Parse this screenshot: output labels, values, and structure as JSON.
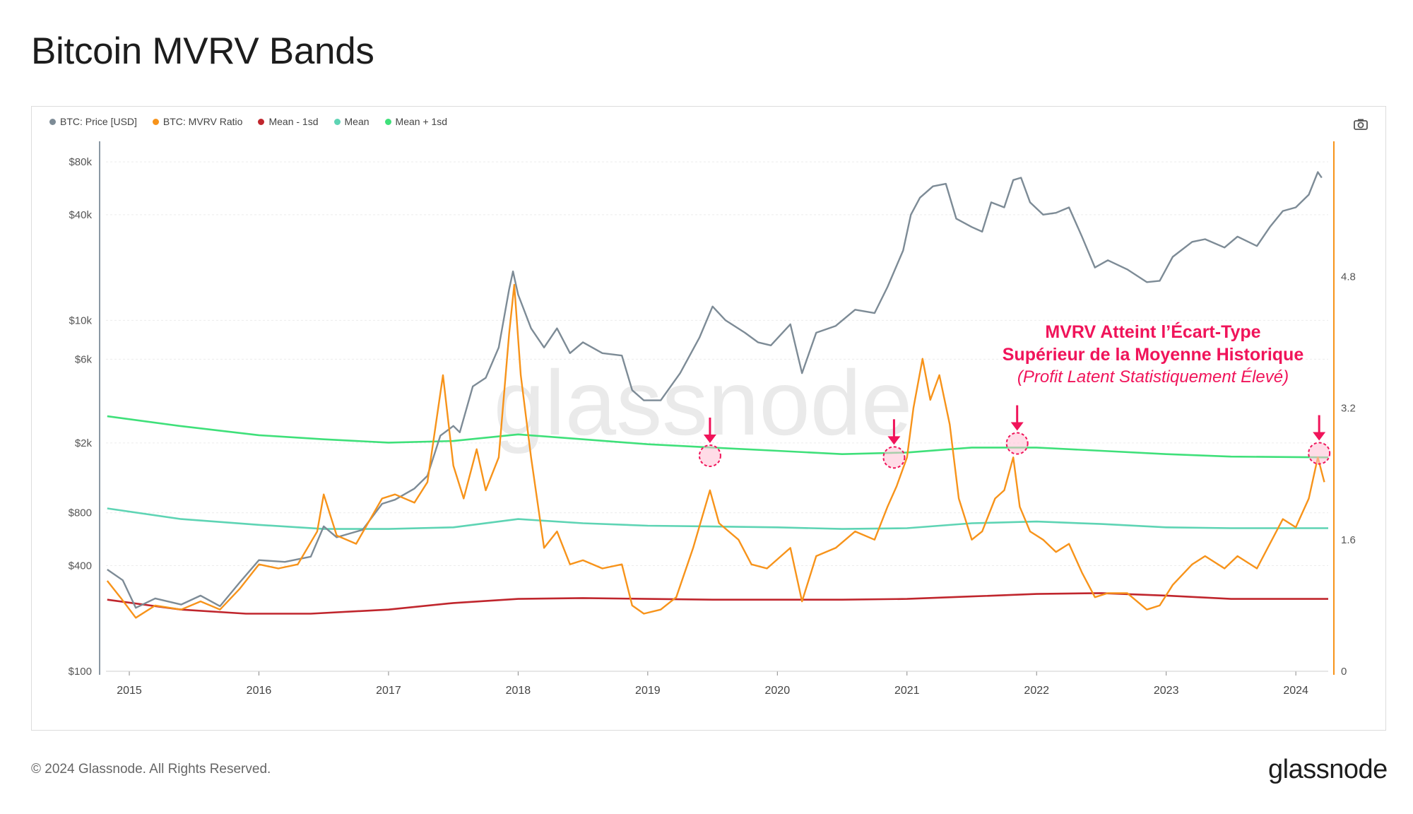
{
  "title": "Bitcoin MVRV Bands",
  "footer": "© 2024 Glassnode. All Rights Reserved.",
  "brand": "glassnode",
  "watermark": "glassnode",
  "colors": {
    "price": "#7d8b96",
    "mvrv": "#f7931a",
    "mean_minus_1sd": "#c0262d",
    "mean": "#5ed4b4",
    "mean_plus_1sd": "#3fe07a",
    "annotation": "#f0145a"
  },
  "chart_data": {
    "type": "line",
    "legend": [
      {
        "name": "BTC: Price [USD]",
        "color": "#7d8b96"
      },
      {
        "name": "BTC: MVRV Ratio",
        "color": "#f7931a"
      },
      {
        "name": "Mean - 1sd",
        "color": "#c0262d"
      },
      {
        "name": "Mean",
        "color": "#5ed4b4"
      },
      {
        "name": "Mean + 1sd",
        "color": "#3fe07a"
      }
    ],
    "x_ticks": [
      "2015",
      "2016",
      "2017",
      "2018",
      "2019",
      "2020",
      "2021",
      "2022",
      "2023",
      "2024"
    ],
    "x_range": [
      2014.82,
      2024.25
    ],
    "y_left": {
      "scale": "log",
      "range": [
        100,
        100000
      ],
      "ticks": [
        {
          "value": 80000,
          "label": "$80k"
        },
        {
          "value": 40000,
          "label": "$40k"
        },
        {
          "value": 10000,
          "label": "$10k"
        },
        {
          "value": 6000,
          "label": "$6k"
        },
        {
          "value": 2000,
          "label": "$2k"
        },
        {
          "value": 800,
          "label": "$800"
        },
        {
          "value": 400,
          "label": "$400"
        },
        {
          "value": 100,
          "label": "$100"
        }
      ]
    },
    "y_right": {
      "scale": "linear",
      "range": [
        0,
        6.4
      ],
      "ticks": [
        {
          "value": 4.8,
          "label": "4.8"
        },
        {
          "value": 3.2,
          "label": "3.2"
        },
        {
          "value": 1.6,
          "label": "1.6"
        },
        {
          "value": 0,
          "label": "0"
        }
      ]
    },
    "series": [
      {
        "name": "BTC: Price [USD]",
        "axis": "left",
        "points": [
          [
            2014.83,
            380
          ],
          [
            2014.95,
            330
          ],
          [
            2015.05,
            230
          ],
          [
            2015.2,
            260
          ],
          [
            2015.4,
            240
          ],
          [
            2015.55,
            270
          ],
          [
            2015.7,
            235
          ],
          [
            2015.85,
            320
          ],
          [
            2016.0,
            430
          ],
          [
            2016.2,
            420
          ],
          [
            2016.4,
            450
          ],
          [
            2016.5,
            670
          ],
          [
            2016.6,
            580
          ],
          [
            2016.8,
            640
          ],
          [
            2016.95,
            900
          ],
          [
            2017.05,
            950
          ],
          [
            2017.2,
            1100
          ],
          [
            2017.3,
            1300
          ],
          [
            2017.4,
            2200
          ],
          [
            2017.5,
            2500
          ],
          [
            2017.55,
            2300
          ],
          [
            2017.65,
            4200
          ],
          [
            2017.75,
            4700
          ],
          [
            2017.85,
            7000
          ],
          [
            2017.93,
            15000
          ],
          [
            2017.96,
            19000
          ],
          [
            2018.0,
            14000
          ],
          [
            2018.1,
            9000
          ],
          [
            2018.2,
            7000
          ],
          [
            2018.3,
            9000
          ],
          [
            2018.4,
            6500
          ],
          [
            2018.5,
            7500
          ],
          [
            2018.65,
            6500
          ],
          [
            2018.8,
            6300
          ],
          [
            2018.88,
            4000
          ],
          [
            2018.97,
            3500
          ],
          [
            2019.1,
            3500
          ],
          [
            2019.25,
            5000
          ],
          [
            2019.4,
            8000
          ],
          [
            2019.5,
            12000
          ],
          [
            2019.6,
            10000
          ],
          [
            2019.75,
            8500
          ],
          [
            2019.85,
            7500
          ],
          [
            2019.95,
            7200
          ],
          [
            2020.1,
            9500
          ],
          [
            2020.19,
            5000
          ],
          [
            2020.3,
            8500
          ],
          [
            2020.45,
            9300
          ],
          [
            2020.6,
            11500
          ],
          [
            2020.75,
            11000
          ],
          [
            2020.85,
            15500
          ],
          [
            2020.97,
            25000
          ],
          [
            2021.03,
            40000
          ],
          [
            2021.1,
            50000
          ],
          [
            2021.2,
            58000
          ],
          [
            2021.3,
            60000
          ],
          [
            2021.38,
            38000
          ],
          [
            2021.5,
            34000
          ],
          [
            2021.58,
            32000
          ],
          [
            2021.65,
            47000
          ],
          [
            2021.75,
            44000
          ],
          [
            2021.82,
            63000
          ],
          [
            2021.88,
            65000
          ],
          [
            2021.95,
            47000
          ],
          [
            2022.05,
            40000
          ],
          [
            2022.15,
            41000
          ],
          [
            2022.25,
            44000
          ],
          [
            2022.35,
            30000
          ],
          [
            2022.45,
            20000
          ],
          [
            2022.55,
            22000
          ],
          [
            2022.7,
            19500
          ],
          [
            2022.85,
            16500
          ],
          [
            2022.95,
            16800
          ],
          [
            2023.05,
            23000
          ],
          [
            2023.2,
            28000
          ],
          [
            2023.3,
            29000
          ],
          [
            2023.45,
            26000
          ],
          [
            2023.55,
            30000
          ],
          [
            2023.7,
            26500
          ],
          [
            2023.8,
            34000
          ],
          [
            2023.9,
            42000
          ],
          [
            2024.0,
            44000
          ],
          [
            2024.1,
            52000
          ],
          [
            2024.17,
            70000
          ],
          [
            2024.2,
            65000
          ]
        ]
      },
      {
        "name": "BTC: MVRV Ratio",
        "axis": "right",
        "points": [
          [
            2014.83,
            1.1
          ],
          [
            2014.93,
            0.9
          ],
          [
            2015.05,
            0.65
          ],
          [
            2015.2,
            0.8
          ],
          [
            2015.4,
            0.75
          ],
          [
            2015.55,
            0.85
          ],
          [
            2015.7,
            0.75
          ],
          [
            2015.85,
            1.0
          ],
          [
            2016.0,
            1.3
          ],
          [
            2016.15,
            1.25
          ],
          [
            2016.3,
            1.3
          ],
          [
            2016.45,
            1.7
          ],
          [
            2016.5,
            2.15
          ],
          [
            2016.6,
            1.65
          ],
          [
            2016.75,
            1.55
          ],
          [
            2016.95,
            2.1
          ],
          [
            2017.05,
            2.15
          ],
          [
            2017.2,
            2.05
          ],
          [
            2017.3,
            2.3
          ],
          [
            2017.42,
            3.6
          ],
          [
            2017.5,
            2.5
          ],
          [
            2017.58,
            2.1
          ],
          [
            2017.68,
            2.7
          ],
          [
            2017.75,
            2.2
          ],
          [
            2017.85,
            2.6
          ],
          [
            2017.93,
            4.1
          ],
          [
            2017.97,
            4.7
          ],
          [
            2018.02,
            3.6
          ],
          [
            2018.1,
            2.6
          ],
          [
            2018.2,
            1.5
          ],
          [
            2018.3,
            1.7
          ],
          [
            2018.4,
            1.3
          ],
          [
            2018.5,
            1.35
          ],
          [
            2018.65,
            1.25
          ],
          [
            2018.8,
            1.3
          ],
          [
            2018.88,
            0.8
          ],
          [
            2018.97,
            0.7
          ],
          [
            2019.1,
            0.75
          ],
          [
            2019.22,
            0.9
          ],
          [
            2019.35,
            1.5
          ],
          [
            2019.48,
            2.2
          ],
          [
            2019.55,
            1.8
          ],
          [
            2019.7,
            1.6
          ],
          [
            2019.8,
            1.3
          ],
          [
            2019.92,
            1.25
          ],
          [
            2020.1,
            1.5
          ],
          [
            2020.19,
            0.85
          ],
          [
            2020.3,
            1.4
          ],
          [
            2020.45,
            1.5
          ],
          [
            2020.6,
            1.7
          ],
          [
            2020.75,
            1.6
          ],
          [
            2020.85,
            2.0
          ],
          [
            2020.92,
            2.25
          ],
          [
            2021.0,
            2.6
          ],
          [
            2021.05,
            3.2
          ],
          [
            2021.12,
            3.8
          ],
          [
            2021.18,
            3.3
          ],
          [
            2021.25,
            3.6
          ],
          [
            2021.33,
            3.0
          ],
          [
            2021.4,
            2.1
          ],
          [
            2021.5,
            1.6
          ],
          [
            2021.58,
            1.7
          ],
          [
            2021.68,
            2.1
          ],
          [
            2021.75,
            2.2
          ],
          [
            2021.82,
            2.6
          ],
          [
            2021.87,
            2.0
          ],
          [
            2021.95,
            1.7
          ],
          [
            2022.05,
            1.6
          ],
          [
            2022.15,
            1.45
          ],
          [
            2022.25,
            1.55
          ],
          [
            2022.35,
            1.2
          ],
          [
            2022.45,
            0.9
          ],
          [
            2022.55,
            0.95
          ],
          [
            2022.7,
            0.95
          ],
          [
            2022.85,
            0.75
          ],
          [
            2022.95,
            0.8
          ],
          [
            2023.05,
            1.05
          ],
          [
            2023.2,
            1.3
          ],
          [
            2023.3,
            1.4
          ],
          [
            2023.45,
            1.25
          ],
          [
            2023.55,
            1.4
          ],
          [
            2023.7,
            1.25
          ],
          [
            2023.8,
            1.55
          ],
          [
            2023.9,
            1.85
          ],
          [
            2024.0,
            1.75
          ],
          [
            2024.1,
            2.1
          ],
          [
            2024.17,
            2.6
          ],
          [
            2024.22,
            2.3
          ]
        ]
      },
      {
        "name": "Mean - 1sd",
        "axis": "right",
        "points": [
          [
            2014.83,
            0.87
          ],
          [
            2015.4,
            0.75
          ],
          [
            2015.9,
            0.7
          ],
          [
            2016.4,
            0.7
          ],
          [
            2017.0,
            0.75
          ],
          [
            2017.5,
            0.83
          ],
          [
            2018.0,
            0.88
          ],
          [
            2018.5,
            0.89
          ],
          [
            2019.0,
            0.88
          ],
          [
            2019.5,
            0.87
          ],
          [
            2020.0,
            0.87
          ],
          [
            2020.5,
            0.87
          ],
          [
            2021.0,
            0.88
          ],
          [
            2021.5,
            0.91
          ],
          [
            2022.0,
            0.94
          ],
          [
            2022.5,
            0.95
          ],
          [
            2023.0,
            0.92
          ],
          [
            2023.5,
            0.88
          ],
          [
            2024.25,
            0.88
          ]
        ]
      },
      {
        "name": "Mean",
        "axis": "right",
        "points": [
          [
            2014.83,
            1.98
          ],
          [
            2015.4,
            1.85
          ],
          [
            2016.0,
            1.78
          ],
          [
            2016.5,
            1.73
          ],
          [
            2017.0,
            1.73
          ],
          [
            2017.5,
            1.75
          ],
          [
            2018.0,
            1.85
          ],
          [
            2018.5,
            1.8
          ],
          [
            2019.0,
            1.77
          ],
          [
            2019.5,
            1.76
          ],
          [
            2020.0,
            1.75
          ],
          [
            2020.5,
            1.73
          ],
          [
            2021.0,
            1.74
          ],
          [
            2021.5,
            1.8
          ],
          [
            2022.0,
            1.82
          ],
          [
            2022.5,
            1.79
          ],
          [
            2023.0,
            1.75
          ],
          [
            2023.5,
            1.74
          ],
          [
            2024.25,
            1.74
          ]
        ]
      },
      {
        "name": "Mean + 1sd",
        "axis": "right",
        "points": [
          [
            2014.83,
            3.1
          ],
          [
            2015.4,
            2.98
          ],
          [
            2016.0,
            2.87
          ],
          [
            2016.5,
            2.82
          ],
          [
            2017.0,
            2.78
          ],
          [
            2017.5,
            2.8
          ],
          [
            2018.0,
            2.88
          ],
          [
            2018.5,
            2.82
          ],
          [
            2019.0,
            2.76
          ],
          [
            2019.5,
            2.72
          ],
          [
            2020.0,
            2.68
          ],
          [
            2020.5,
            2.64
          ],
          [
            2021.0,
            2.66
          ],
          [
            2021.5,
            2.72
          ],
          [
            2022.0,
            2.72
          ],
          [
            2022.5,
            2.68
          ],
          [
            2023.0,
            2.64
          ],
          [
            2023.5,
            2.61
          ],
          [
            2024.25,
            2.6
          ]
        ]
      }
    ],
    "highlights": [
      {
        "x": 2019.48,
        "y": 2.62
      },
      {
        "x": 2020.9,
        "y": 2.6
      },
      {
        "x": 2021.85,
        "y": 2.77
      },
      {
        "x": 2024.18,
        "y": 2.65
      }
    ],
    "annotation": {
      "line1": "MVRV Atteint l’Écart-Type",
      "line2": "Supérieur de la Moyenne Historique",
      "line3": "(Profit Latent Statistiquement Élevé)"
    }
  }
}
